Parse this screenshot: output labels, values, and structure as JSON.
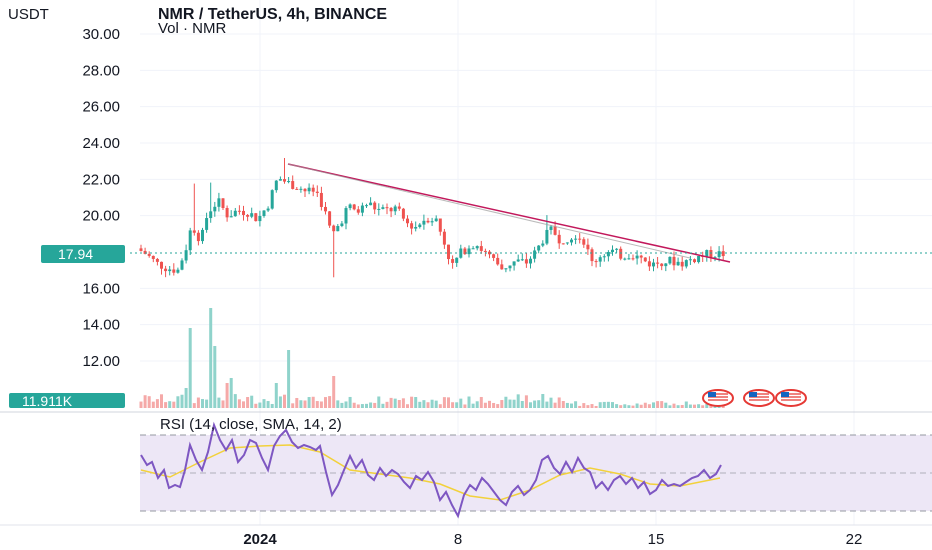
{
  "header": {
    "currency": "USDT",
    "title": "NMR / TetherUS, 4h, BINANCE",
    "volume_label": "Vol · NMR"
  },
  "rsi_panel": {
    "label": "RSI (14, close, SMA, 14, 2)"
  },
  "price_badge": "17.94",
  "volume_badge": "11.911K",
  "colors": {
    "up": "#26a69a",
    "down": "#ef5350",
    "badge": "#26a69a",
    "trendline": "#c2185b",
    "rsi": "#7e57c2",
    "rsi_ma": "#f2d13b",
    "rsi_band": "#ede7f6"
  },
  "chart_data": [
    {
      "type": "candlestick",
      "title": "NMR / TetherUS, 4h, BINANCE",
      "y_ticks": [
        "30.00",
        "28.00",
        "26.00",
        "24.00",
        "22.00",
        "20.00",
        "16.00",
        "14.00",
        "12.00"
      ],
      "ylim": [
        11,
        31
      ],
      "x_labels": [
        "2024",
        "8",
        "15",
        "22"
      ],
      "last_price": 17.94,
      "grid": true,
      "trendline": {
        "from_price": 22.85,
        "to_price": 17.6
      }
    },
    {
      "type": "bar",
      "title": "Vol · NMR",
      "last_value": "11.911K"
    },
    {
      "type": "line",
      "title": "RSI (14, close, SMA, 14, 2)",
      "levels": [
        70,
        50,
        30
      ]
    }
  ]
}
